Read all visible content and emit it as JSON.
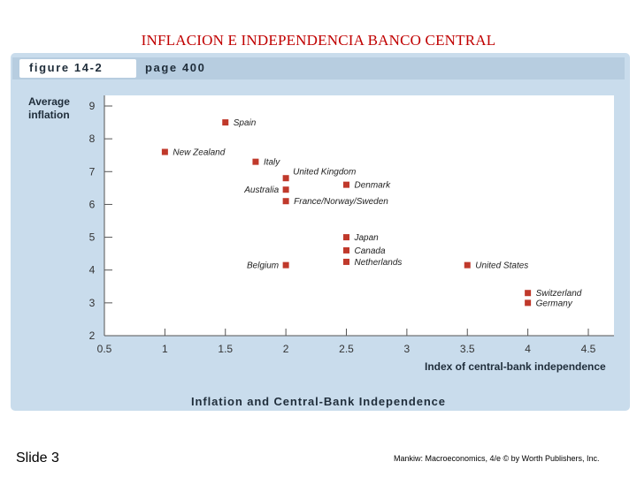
{
  "slide": {
    "title": "INFLACION E INDEPENDENCIA BANCO CENTRAL",
    "number_label": "Slide 3",
    "credit": "Mankiw: Macroeconomics, 4/e © by Worth Publishers, Inc."
  },
  "figure": {
    "label": "figure 14-2",
    "page": "page 400",
    "caption": "Inflation and Central-Bank Independence"
  },
  "colors": {
    "panel": "#c9dcec",
    "marker": "#c0392b",
    "axis": "#555555",
    "title": "#c00000"
  },
  "chart_data": {
    "type": "scatter",
    "ylabel": "Average inflation",
    "xlabel": "Index of central-bank independence",
    "xlim": [
      0.5,
      4.5
    ],
    "ylim": [
      2,
      9
    ],
    "xticks": [
      "0.5",
      "1",
      "1.5",
      "2",
      "2.5",
      "3",
      "3.5",
      "4",
      "4.5"
    ],
    "yticks": [
      "2",
      "3",
      "4",
      "5",
      "6",
      "7",
      "8",
      "9"
    ],
    "grid": false,
    "points": [
      {
        "label": "Spain",
        "x": 1.5,
        "y": 8.5,
        "label_side": "right"
      },
      {
        "label": "New Zealand",
        "x": 1.0,
        "y": 7.6,
        "label_side": "right"
      },
      {
        "label": "Italy",
        "x": 1.75,
        "y": 7.3,
        "label_side": "right"
      },
      {
        "label": "United Kingdom",
        "x": 2.0,
        "y": 6.8,
        "label_side": "right-up"
      },
      {
        "label": "Australia",
        "x": 2.0,
        "y": 6.45,
        "label_side": "left"
      },
      {
        "label": "Denmark",
        "x": 2.5,
        "y": 6.6,
        "label_side": "right"
      },
      {
        "label": "France/Norway/Sweden",
        "x": 2.0,
        "y": 6.1,
        "label_side": "right"
      },
      {
        "label": "Japan",
        "x": 2.5,
        "y": 5.0,
        "label_side": "right"
      },
      {
        "label": "Canada",
        "x": 2.5,
        "y": 4.6,
        "label_side": "right"
      },
      {
        "label": "Netherlands",
        "x": 2.5,
        "y": 4.25,
        "label_side": "right"
      },
      {
        "label": "Belgium",
        "x": 2.0,
        "y": 4.15,
        "label_side": "left"
      },
      {
        "label": "United States",
        "x": 3.5,
        "y": 4.15,
        "label_side": "right"
      },
      {
        "label": "Switzerland",
        "x": 4.0,
        "y": 3.3,
        "label_side": "right"
      },
      {
        "label": "Germany",
        "x": 4.0,
        "y": 3.0,
        "label_side": "right"
      }
    ]
  }
}
